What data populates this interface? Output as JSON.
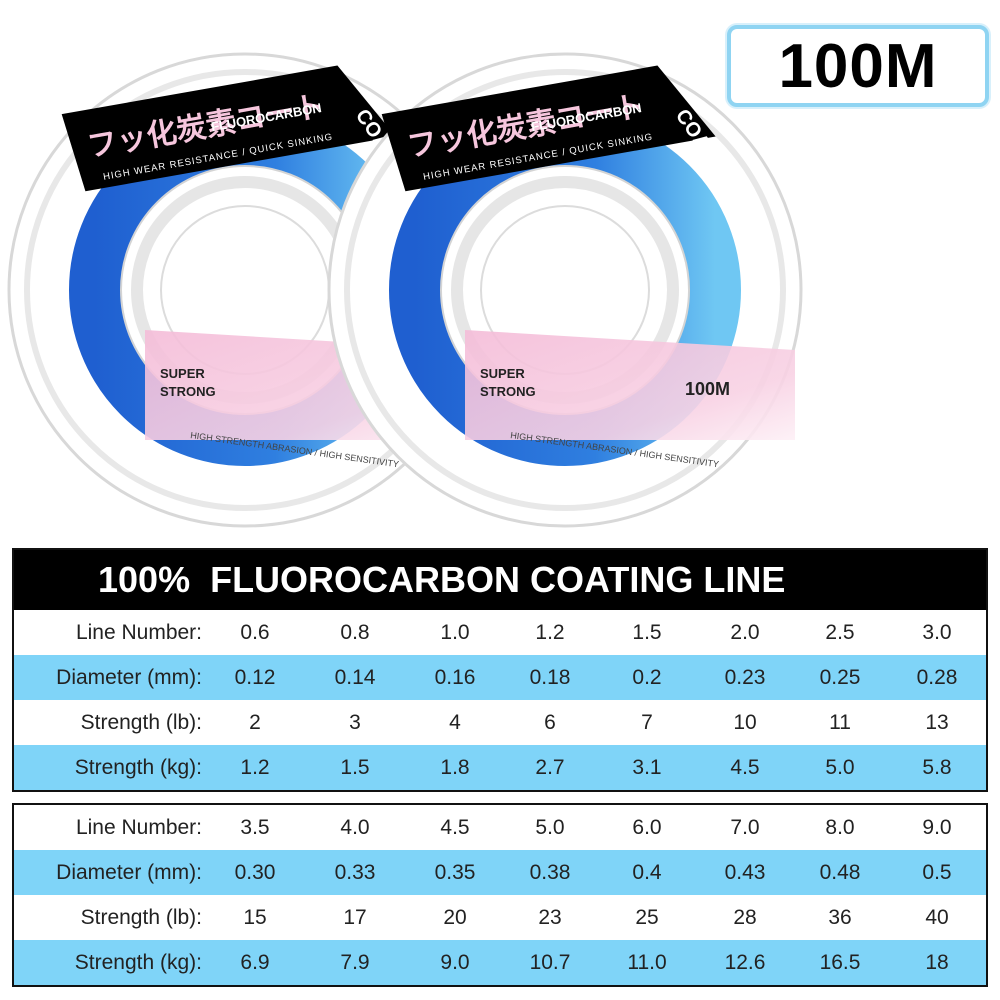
{
  "badge": "100M",
  "spool": {
    "japanese": "フッ化炭素コート",
    "brand": "FLUOROCARBON",
    "tagline": "HIGH WEAR RESISTANCE / QUICK SINKING",
    "coating": "COATING",
    "super": "SUPER",
    "strong": "STRONG",
    "length": "100M",
    "bottom_text": "HIGH STRENGTH ABRASION / HIGH SENSITIVITY"
  },
  "table": {
    "title": "100%  FLUOROCARBON COATING LINE",
    "sections": [
      {
        "rows": [
          [
            "Line Number:",
            "0.6",
            "0.8",
            "1.0",
            "1.2",
            "1.5",
            "2.0",
            "2.5",
            "3.0"
          ],
          [
            "Diameter (mm):",
            "0.12",
            "0.14",
            "0.16",
            "0.18",
            "0.2",
            "0.23",
            "0.25",
            "0.28"
          ],
          [
            "Strength (lb):",
            "2",
            "3",
            "4",
            "6",
            "7",
            "10",
            "11",
            "13"
          ],
          [
            "Strength (kg):",
            "1.2",
            "1.5",
            "1.8",
            "2.7",
            "3.1",
            "4.5",
            "5.0",
            "5.8"
          ]
        ]
      },
      {
        "rows": [
          [
            "Line Number:",
            "3.5",
            "4.0",
            "4.5",
            "5.0",
            "6.0",
            "7.0",
            "8.0",
            "9.0"
          ],
          [
            "Diameter (mm):",
            "0.30",
            "0.33",
            "0.35",
            "0.38",
            "0.4",
            "0.43",
            "0.48",
            "0.5"
          ],
          [
            "Strength (lb):",
            "15",
            "17",
            "20",
            "23",
            "25",
            "28",
            "36",
            "40"
          ],
          [
            "Strength (kg):",
            "6.9",
            "7.9",
            "9.0",
            "10.7",
            "11.0",
            "12.6",
            "16.5",
            "18"
          ]
        ]
      }
    ]
  }
}
